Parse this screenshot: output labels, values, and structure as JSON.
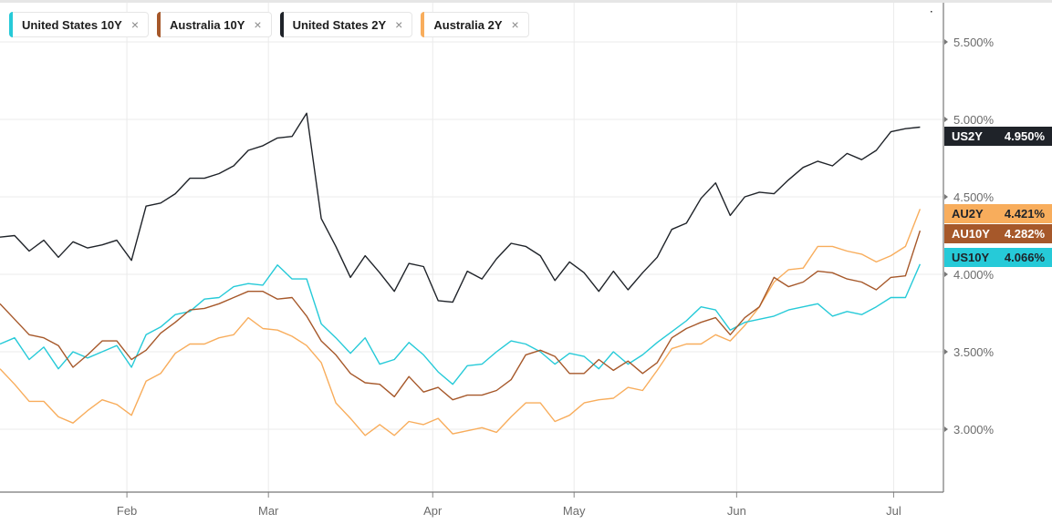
{
  "legend": [
    {
      "label": "United States 10Y",
      "color": "#26cad8",
      "close": "×"
    },
    {
      "label": "Australia 10Y",
      "color": "#a6582a",
      "close": "×"
    },
    {
      "label": "United States 2Y",
      "color": "#1f2329",
      "close": "×"
    },
    {
      "label": "Australia 2Y",
      "color": "#f8ad5c",
      "close": "×"
    }
  ],
  "value_tags": [
    {
      "code": "US2Y",
      "value": "4.950%",
      "numeric": 4.95,
      "bg": "#1f2329",
      "fg": "#ffffff"
    },
    {
      "code": "AU2Y",
      "value": "4.421%",
      "numeric": 4.421,
      "bg": "#f8ad5c",
      "fg": "#1f2329"
    },
    {
      "code": "AU10Y",
      "value": "4.282%",
      "numeric": 4.282,
      "bg": "#a6582a",
      "fg": "#ffffff"
    },
    {
      "code": "US10Y",
      "value": "4.066%",
      "numeric": 4.066,
      "bg": "#26cad8",
      "fg": "#1f2329"
    }
  ],
  "chart_data": {
    "type": "line",
    "title": "",
    "xlabel": "",
    "ylabel": "",
    "x_unit": "period index (approx. 2 trading days)",
    "xlim": [
      0,
      64.6
    ],
    "ylim": [
      2.594,
      5.753
    ],
    "grid": true,
    "legend_placement": "top-left",
    "x_ticks": [
      {
        "label": "Feb",
        "at": 8.69
      },
      {
        "label": "Mar",
        "at": 18.38
      },
      {
        "label": "Apr",
        "at": 29.63
      },
      {
        "label": "May",
        "at": 39.31
      },
      {
        "label": "Jun",
        "at": 50.44
      },
      {
        "label": "Jul",
        "at": 61.19
      }
    ],
    "y_ticks": [
      {
        "label": "5.500%",
        "at": 5.5
      },
      {
        "label": "5.000%",
        "at": 5.0
      },
      {
        "label": "4.500%",
        "at": 4.5
      },
      {
        "label": "4.000%",
        "at": 4.0
      },
      {
        "label": "3.500%",
        "at": 3.5
      },
      {
        "label": "3.000%",
        "at": 3.0
      }
    ],
    "series": [
      {
        "name": "United States 2Y",
        "color": "#1f2329",
        "values": [
          4.24,
          4.25,
          4.15,
          4.22,
          4.11,
          4.21,
          4.17,
          4.19,
          4.22,
          4.09,
          4.44,
          4.46,
          4.52,
          4.62,
          4.62,
          4.65,
          4.7,
          4.8,
          4.83,
          4.88,
          4.89,
          5.04,
          4.36,
          4.18,
          3.98,
          4.12,
          4.01,
          3.89,
          4.07,
          4.05,
          3.83,
          3.82,
          4.02,
          3.97,
          4.1,
          4.2,
          4.18,
          4.12,
          3.96,
          4.08,
          4.01,
          3.89,
          4.02,
          3.9,
          4.01,
          4.11,
          4.29,
          4.33,
          4.49,
          4.59,
          4.38,
          4.5,
          4.53,
          4.52,
          4.61,
          4.69,
          4.73,
          4.7,
          4.78,
          4.74,
          4.8,
          4.92,
          4.94,
          4.95
        ]
      },
      {
        "name": "United States 10Y",
        "color": "#26cad8",
        "values": [
          3.55,
          3.59,
          3.45,
          3.53,
          3.39,
          3.5,
          3.46,
          3.5,
          3.54,
          3.4,
          3.61,
          3.66,
          3.74,
          3.76,
          3.84,
          3.85,
          3.92,
          3.94,
          3.93,
          4.06,
          3.97,
          3.97,
          3.68,
          3.59,
          3.49,
          3.59,
          3.42,
          3.45,
          3.56,
          3.48,
          3.37,
          3.29,
          3.41,
          3.42,
          3.5,
          3.57,
          3.55,
          3.5,
          3.42,
          3.49,
          3.47,
          3.39,
          3.5,
          3.42,
          3.48,
          3.56,
          3.63,
          3.7,
          3.79,
          3.77,
          3.64,
          3.69,
          3.71,
          3.73,
          3.77,
          3.79,
          3.81,
          3.73,
          3.76,
          3.74,
          3.79,
          3.85,
          3.85,
          4.066
        ]
      },
      {
        "name": "Australia 10Y",
        "color": "#a6582a",
        "values": [
          3.81,
          3.71,
          3.61,
          3.59,
          3.54,
          3.4,
          3.48,
          3.57,
          3.57,
          3.45,
          3.51,
          3.62,
          3.69,
          3.77,
          3.78,
          3.81,
          3.85,
          3.89,
          3.89,
          3.84,
          3.85,
          3.73,
          3.57,
          3.48,
          3.36,
          3.3,
          3.29,
          3.21,
          3.34,
          3.24,
          3.27,
          3.19,
          3.22,
          3.22,
          3.25,
          3.32,
          3.48,
          3.51,
          3.47,
          3.36,
          3.36,
          3.45,
          3.38,
          3.44,
          3.36,
          3.43,
          3.59,
          3.65,
          3.69,
          3.72,
          3.61,
          3.72,
          3.79,
          3.98,
          3.92,
          3.95,
          4.02,
          4.01,
          3.97,
          3.95,
          3.9,
          3.98,
          3.99,
          4.282
        ]
      },
      {
        "name": "Australia 2Y",
        "color": "#f8ad5c",
        "values": [
          3.39,
          3.29,
          3.18,
          3.18,
          3.08,
          3.04,
          3.12,
          3.19,
          3.16,
          3.09,
          3.31,
          3.36,
          3.49,
          3.55,
          3.55,
          3.59,
          3.61,
          3.72,
          3.65,
          3.64,
          3.6,
          3.54,
          3.43,
          3.17,
          3.07,
          2.96,
          3.03,
          2.96,
          3.05,
          3.03,
          3.07,
          2.97,
          2.99,
          3.01,
          2.98,
          3.08,
          3.17,
          3.17,
          3.05,
          3.09,
          3.17,
          3.19,
          3.2,
          3.27,
          3.25,
          3.38,
          3.52,
          3.55,
          3.55,
          3.61,
          3.57,
          3.67,
          3.79,
          3.95,
          4.03,
          4.04,
          4.18,
          4.18,
          4.15,
          4.13,
          4.08,
          4.12,
          4.18,
          4.421
        ]
      }
    ]
  }
}
